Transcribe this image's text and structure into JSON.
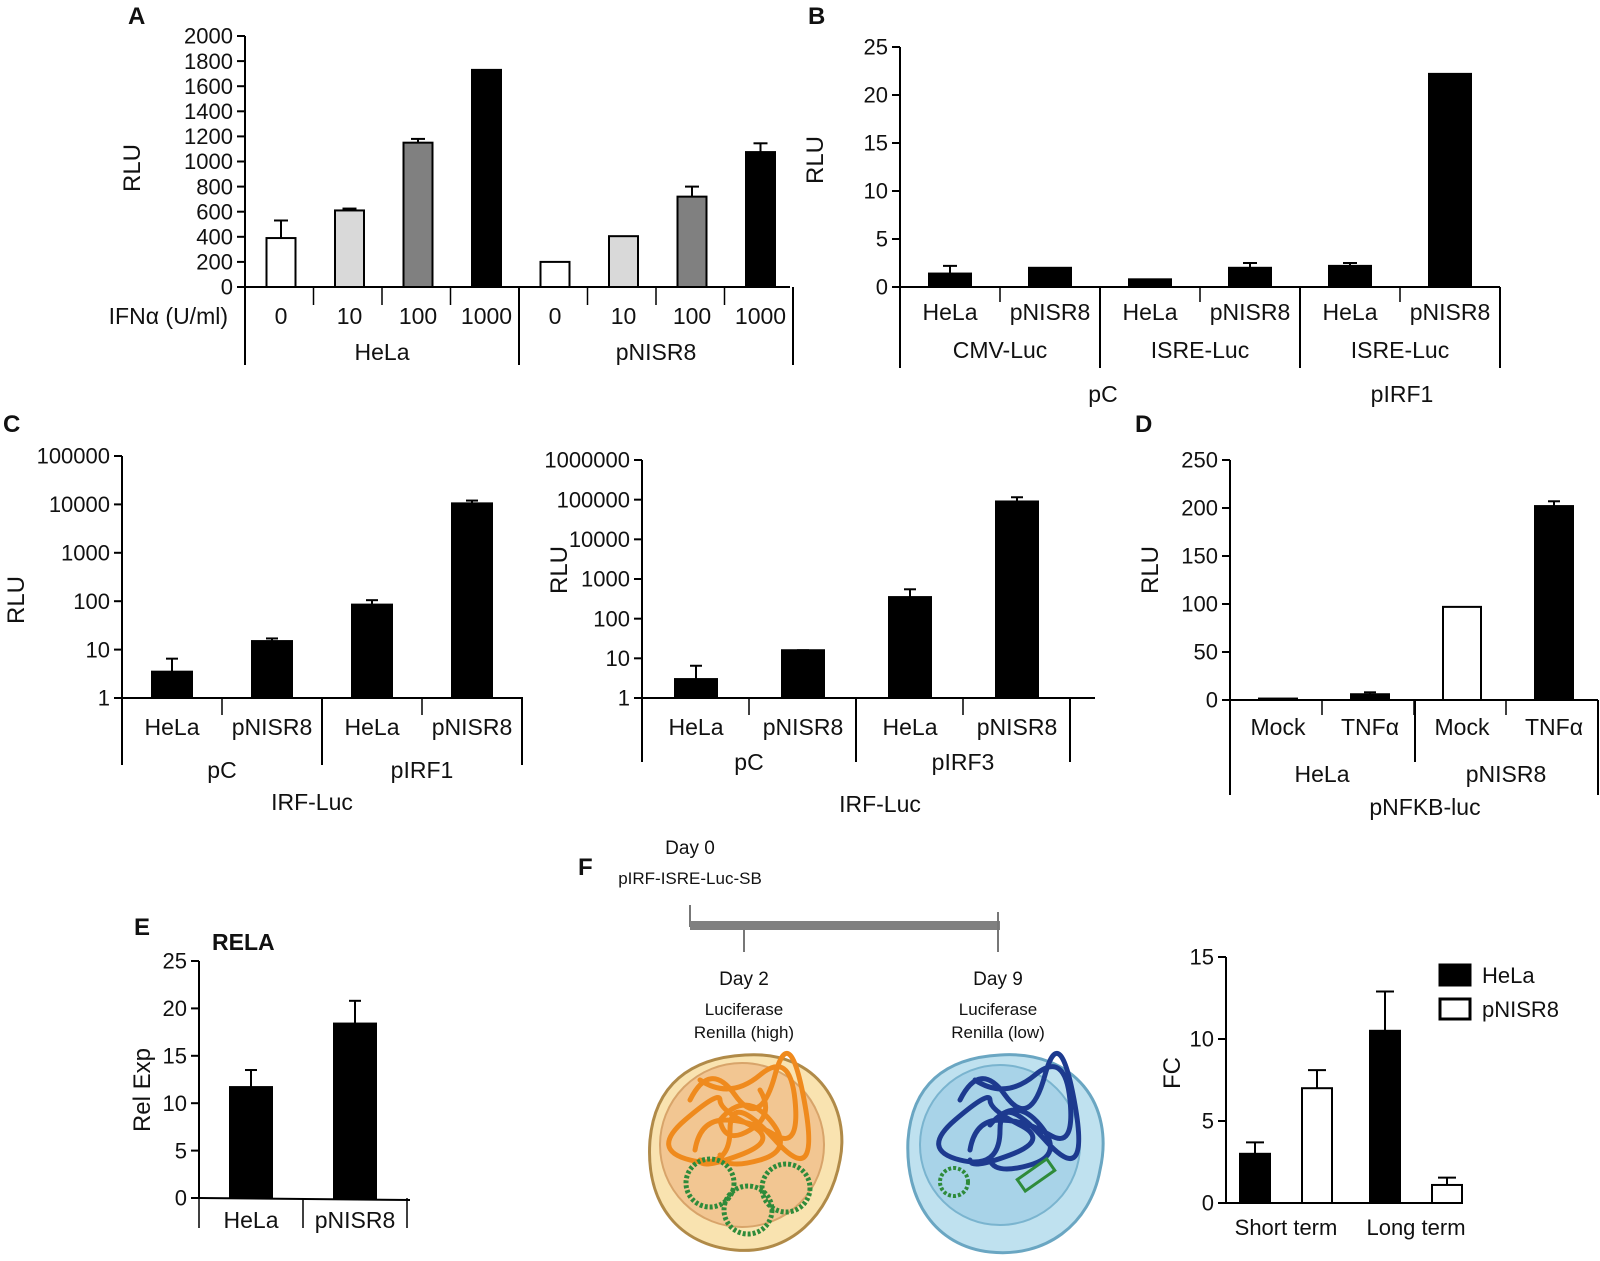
{
  "figure": {
    "panel_labels": [
      "A",
      "B",
      "C",
      "D",
      "E",
      "F"
    ]
  },
  "chart_data": [
    {
      "id": "A",
      "type": "bar",
      "ylabel": "RLU",
      "xlabel_prefix": "IFNα (U/ml)",
      "ylim": [
        0,
        2000
      ],
      "yticks": [
        "0",
        "200",
        "400",
        "600",
        "800",
        "1000",
        "1200",
        "1400",
        "1600",
        "1800",
        "2000"
      ],
      "ytick_values": [
        0,
        200,
        400,
        600,
        800,
        1000,
        1200,
        1400,
        1600,
        1800,
        2000
      ],
      "bars": [
        {
          "label": "0",
          "value": 390,
          "error": 140,
          "color": "#ffffff"
        },
        {
          "label": "10",
          "value": 610,
          "error": 15,
          "color": "#d9d9d9"
        },
        {
          "label": "100",
          "value": 1150,
          "error": 30,
          "color": "#808080"
        },
        {
          "label": "1000",
          "value": 1730,
          "error": 0,
          "color": "#000000"
        },
        {
          "label": "0",
          "value": 200,
          "error": 0,
          "color": "#ffffff"
        },
        {
          "label": "10",
          "value": 405,
          "error": 0,
          "color": "#d9d9d9"
        },
        {
          "label": "100",
          "value": 720,
          "error": 80,
          "color": "#808080"
        },
        {
          "label": "1000",
          "value": 1075,
          "error": 70,
          "color": "#000000"
        }
      ],
      "groups": [
        "HeLa",
        "pNISR8"
      ]
    },
    {
      "id": "B",
      "type": "bar",
      "ylabel": "RLU",
      "ylim": [
        0,
        25
      ],
      "yticks": [
        "0",
        "5",
        "10",
        "15",
        "20",
        "25"
      ],
      "ytick_values": [
        0,
        5,
        10,
        15,
        20,
        25
      ],
      "bars": [
        {
          "label": "HeLa",
          "value": 1.4,
          "error": 0.8
        },
        {
          "label": "pNISR8",
          "value": 2.0,
          "error": 0
        },
        {
          "label": "HeLa",
          "value": 0.8,
          "error": 0
        },
        {
          "label": "pNISR8",
          "value": 2.0,
          "error": 0.5
        },
        {
          "label": "HeLa",
          "value": 2.2,
          "error": 0.3
        },
        {
          "label": "pNISR8",
          "value": 22.2,
          "error": 0
        }
      ],
      "groups1": [
        "CMV-Luc",
        "ISRE-Luc",
        "ISRE-Luc"
      ],
      "groups2": [
        "pC",
        "pIRF1"
      ]
    },
    {
      "id": "C1",
      "type": "bar",
      "scale": "log",
      "ylabel": "RLU",
      "ylim": [
        1,
        100000
      ],
      "yticks": [
        "1",
        "10",
        "100",
        "1000",
        "10000",
        "100000"
      ],
      "ytick_values": [
        1,
        10,
        100,
        1000,
        10000,
        100000
      ],
      "bars": [
        {
          "label": "HeLa",
          "value": 3.5,
          "error_top": 6.5
        },
        {
          "label": "pNISR8",
          "value": 15,
          "error_top": 17
        },
        {
          "label": "HeLa",
          "value": 85,
          "error_top": 105
        },
        {
          "label": "pNISR8",
          "value": 10500,
          "error_top": 12000
        }
      ],
      "groups1": [
        "pC",
        "pIRF1"
      ],
      "title_bottom": "IRF-Luc"
    },
    {
      "id": "C2",
      "type": "bar",
      "scale": "log",
      "ylabel": "RLU",
      "ylim": [
        1,
        1000000
      ],
      "yticks": [
        "1",
        "10",
        "100",
        "1000",
        "10000",
        "100000",
        "1000000"
      ],
      "ytick_values": [
        1,
        10,
        100,
        1000,
        10000,
        100000,
        1000000
      ],
      "bars": [
        {
          "label": "HeLa",
          "value": 3,
          "error_top": 6.5
        },
        {
          "label": "pNISR8",
          "value": 16,
          "error_top": 16
        },
        {
          "label": "HeLa",
          "value": 350,
          "error_top": 550
        },
        {
          "label": "pNISR8",
          "value": 90000,
          "error_top": 115000
        }
      ],
      "groups1": [
        "pC",
        "pIRF3"
      ],
      "title_bottom": "IRF-Luc"
    },
    {
      "id": "D",
      "type": "bar",
      "ylabel": "RLU",
      "ylim": [
        0,
        250
      ],
      "yticks": [
        "0",
        "50",
        "100",
        "150",
        "200",
        "250"
      ],
      "ytick_values": [
        0,
        50,
        100,
        150,
        200,
        250
      ],
      "bars": [
        {
          "label": "Mock",
          "value": 1.5,
          "error": 0,
          "color": "#ffffff"
        },
        {
          "label": "TNFα",
          "value": 6,
          "error": 2,
          "color": "#000000"
        },
        {
          "label": "Mock",
          "value": 97,
          "error": 0,
          "color": "#ffffff"
        },
        {
          "label": "TNFα",
          "value": 202,
          "error": 5,
          "color": "#000000"
        }
      ],
      "groups1": [
        "HeLa",
        "pNISR8"
      ],
      "title_bottom": "pNFKB-luc"
    },
    {
      "id": "E",
      "type": "bar",
      "title": "RELA",
      "ylabel": "Rel Exp",
      "ylim": [
        0,
        25
      ],
      "yticks": [
        "0",
        "5",
        "10",
        "15",
        "20",
        "25"
      ],
      "ytick_values": [
        0,
        5,
        10,
        15,
        20,
        25
      ],
      "bars": [
        {
          "label": "HeLa",
          "value": 11.7,
          "error": 1.8
        },
        {
          "label": "pNISR8",
          "value": 18.4,
          "error": 2.4
        }
      ]
    },
    {
      "id": "F",
      "type": "bar",
      "ylabel": "FC",
      "ylim": [
        0,
        15
      ],
      "yticks": [
        "0",
        "5",
        "10",
        "15"
      ],
      "ytick_values": [
        0,
        5,
        10,
        15
      ],
      "categories": [
        "Short term",
        "Long term"
      ],
      "series": [
        {
          "name": "HeLa",
          "values": [
            3.0,
            10.5
          ],
          "errors": [
            0.7,
            2.4
          ],
          "color": "#000000"
        },
        {
          "name": "pNISR8",
          "values": [
            7.0,
            1.1
          ],
          "errors": [
            1.1,
            0.45
          ],
          "color": "#ffffff"
        }
      ]
    }
  ],
  "timeline": {
    "day0": "Day 0",
    "construct": "pIRF-ISRE-Luc-SB",
    "day2": "Day 2",
    "day2_line1": "Luciferase",
    "day2_line2": "Renilla (high)",
    "day9": "Day 9",
    "day9_line1": "Luciferase",
    "day9_line2": "Renilla (low)"
  }
}
